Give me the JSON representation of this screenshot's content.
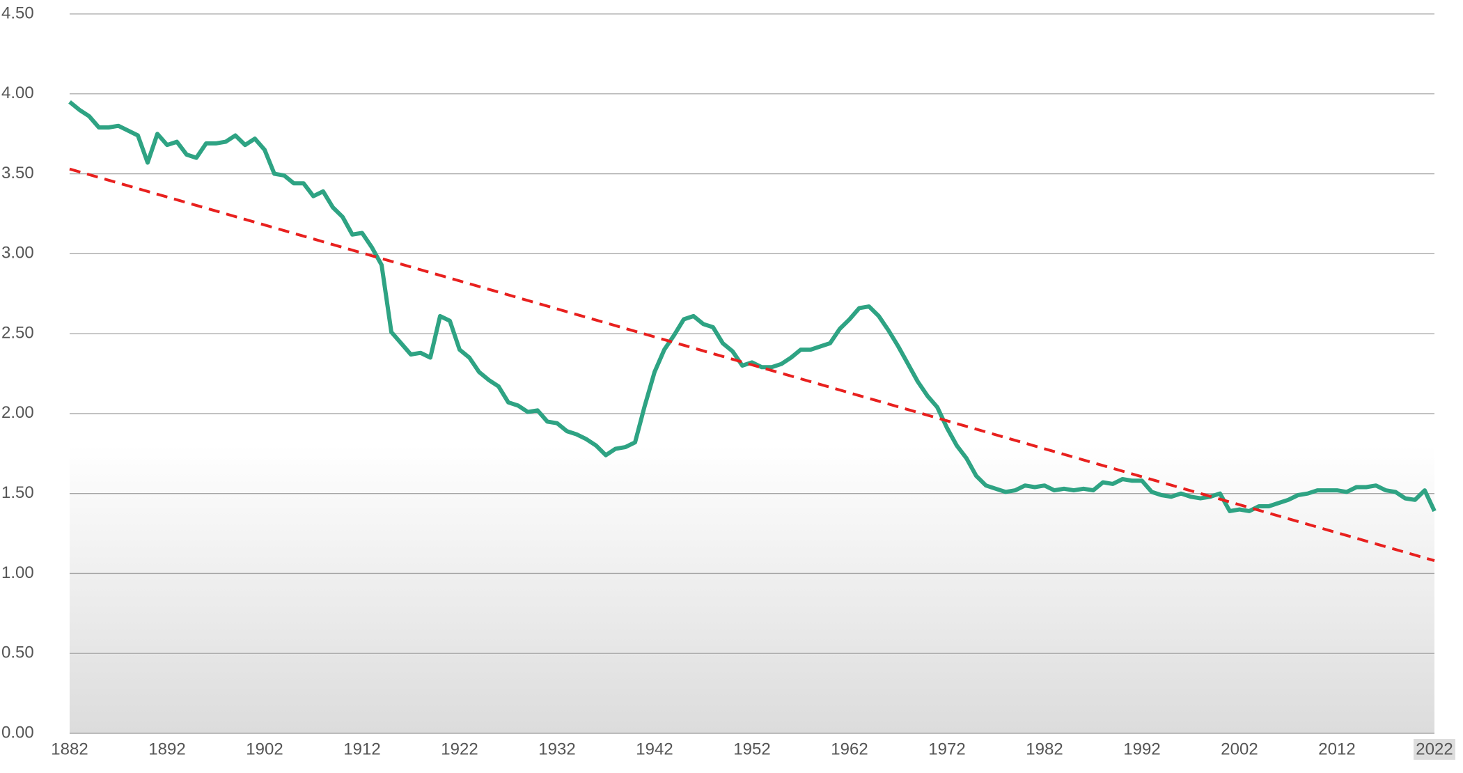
{
  "chart_data": {
    "type": "line",
    "x": [
      1882,
      1883,
      1884,
      1885,
      1886,
      1887,
      1888,
      1889,
      1890,
      1891,
      1892,
      1893,
      1894,
      1895,
      1896,
      1897,
      1898,
      1899,
      1900,
      1901,
      1902,
      1903,
      1904,
      1905,
      1906,
      1907,
      1908,
      1909,
      1910,
      1911,
      1912,
      1913,
      1914,
      1915,
      1916,
      1917,
      1918,
      1919,
      1920,
      1921,
      1922,
      1923,
      1924,
      1925,
      1926,
      1927,
      1928,
      1929,
      1930,
      1931,
      1932,
      1933,
      1934,
      1935,
      1936,
      1937,
      1938,
      1939,
      1940,
      1941,
      1942,
      1943,
      1944,
      1945,
      1946,
      1947,
      1948,
      1949,
      1950,
      1951,
      1952,
      1953,
      1954,
      1955,
      1956,
      1957,
      1958,
      1959,
      1960,
      1961,
      1962,
      1963,
      1964,
      1965,
      1966,
      1967,
      1968,
      1969,
      1970,
      1971,
      1972,
      1973,
      1974,
      1975,
      1976,
      1977,
      1978,
      1979,
      1980,
      1981,
      1982,
      1983,
      1984,
      1985,
      1986,
      1987,
      1988,
      1989,
      1990,
      1991,
      1992,
      1993,
      1994,
      1995,
      1996,
      1997,
      1998,
      1999,
      2000,
      2001,
      2002,
      2003,
      2004,
      2005,
      2006,
      2007,
      2008,
      2009,
      2010,
      2011,
      2012,
      2013,
      2014,
      2015,
      2016,
      2017,
      2018,
      2019,
      2020,
      2021,
      2022
    ],
    "series": [
      {
        "color": "#2ea383",
        "values": [
          3.95,
          3.9,
          3.86,
          3.79,
          3.79,
          3.8,
          3.77,
          3.74,
          3.57,
          3.75,
          3.68,
          3.7,
          3.62,
          3.6,
          3.69,
          3.69,
          3.7,
          3.74,
          3.68,
          3.72,
          3.65,
          3.5,
          3.49,
          3.44,
          3.44,
          3.36,
          3.39,
          3.29,
          3.23,
          3.12,
          3.13,
          3.04,
          2.93,
          2.51,
          2.44,
          2.37,
          2.38,
          2.35,
          2.61,
          2.58,
          2.4,
          2.35,
          2.26,
          2.21,
          2.17,
          2.07,
          2.05,
          2.01,
          2.02,
          1.95,
          1.94,
          1.89,
          1.87,
          1.84,
          1.8,
          1.74,
          1.78,
          1.79,
          1.82,
          2.05,
          2.26,
          2.4,
          2.49,
          2.59,
          2.61,
          2.56,
          2.54,
          2.44,
          2.39,
          2.3,
          2.32,
          2.29,
          2.29,
          2.31,
          2.35,
          2.4,
          2.4,
          2.42,
          2.44,
          2.53,
          2.59,
          2.66,
          2.67,
          2.61,
          2.52,
          2.42,
          2.31,
          2.2,
          2.11,
          2.04,
          1.91,
          1.8,
          1.72,
          1.61,
          1.55,
          1.53,
          1.51,
          1.52,
          1.55,
          1.54,
          1.55,
          1.52,
          1.53,
          1.52,
          1.53,
          1.52,
          1.57,
          1.56,
          1.59,
          1.58,
          1.58,
          1.51,
          1.49,
          1.48,
          1.5,
          1.48,
          1.47,
          1.48,
          1.5,
          1.39,
          1.4,
          1.39,
          1.42,
          1.42,
          1.44,
          1.46,
          1.49,
          1.5,
          1.52,
          1.52,
          1.52,
          1.51,
          1.54,
          1.54,
          1.55,
          1.52,
          1.51,
          1.47,
          1.46,
          1.52,
          1.39
        ]
      },
      {
        "color": "#e8201e",
        "dashed": true,
        "x": [
          1882,
          2022
        ],
        "values": [
          3.53,
          1.08
        ]
      }
    ],
    "xlim": [
      1882,
      2022
    ],
    "xticks": [
      1882,
      1892,
      1902,
      1912,
      1922,
      1932,
      1942,
      1952,
      1962,
      1972,
      1982,
      1992,
      2002,
      2012,
      2022
    ],
    "ylim": [
      0,
      4.5
    ],
    "yticks": [
      {
        "value": 0,
        "label": "0.00"
      },
      {
        "value": 0.5,
        "label": "0.50"
      },
      {
        "value": 1,
        "label": "1.00"
      },
      {
        "value": 1.5,
        "label": "1.50"
      },
      {
        "value": 2,
        "label": "2.00"
      },
      {
        "value": 2.5,
        "label": "2.50"
      },
      {
        "value": 3,
        "label": "3.00"
      },
      {
        "value": 3.5,
        "label": "3.50"
      },
      {
        "value": 4,
        "label": "4.00"
      },
      {
        "value": 4.5,
        "label": "4.50"
      }
    ],
    "grid": true
  }
}
